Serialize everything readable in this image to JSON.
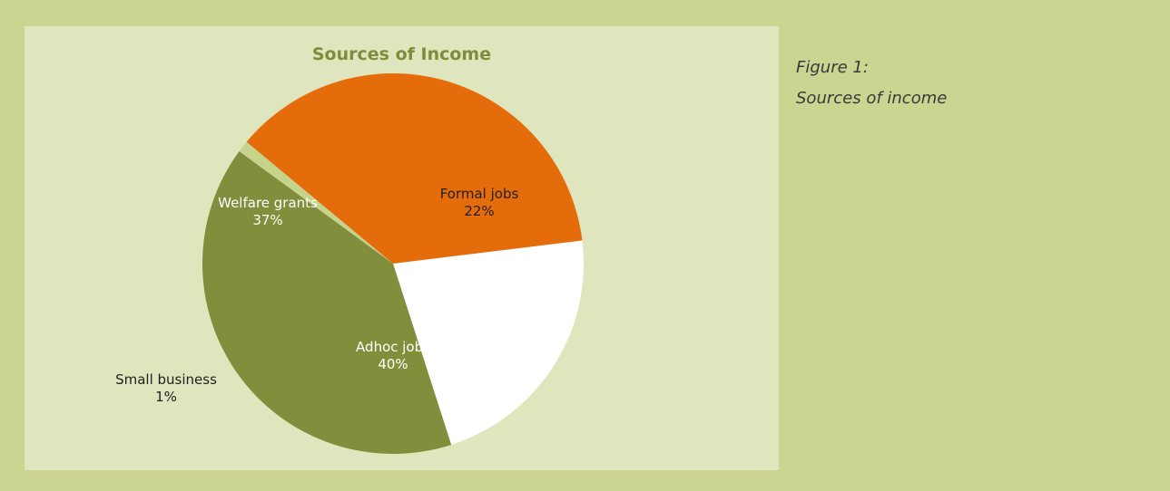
{
  "chart_data": {
    "type": "pie",
    "title": "Sources of Income",
    "slices": [
      {
        "label": "Formal jobs",
        "value": 22,
        "value_label": "22%",
        "color": "#ffffff",
        "text_color": "#1f1f1f"
      },
      {
        "label": "Adhoc jobs",
        "value": 40,
        "value_label": "40%",
        "color": "#818e3c",
        "text_color": "#ffffff"
      },
      {
        "label": "Small business",
        "value": 1,
        "value_label": "1%",
        "color": "#c6d38a",
        "text_color": "#1f1f1f"
      },
      {
        "label": "Welfare grants",
        "value": 37,
        "value_label": "37%",
        "color": "#e46c0a",
        "text_color": "#ffffff"
      }
    ],
    "legend": "none"
  },
  "caption": {
    "line1": "Figure 1:",
    "line2": "Sources of income"
  },
  "colors": {
    "page_background": "#cbd491",
    "panel_background": "#dfe5bc",
    "title_color": "#7f8c3b"
  }
}
